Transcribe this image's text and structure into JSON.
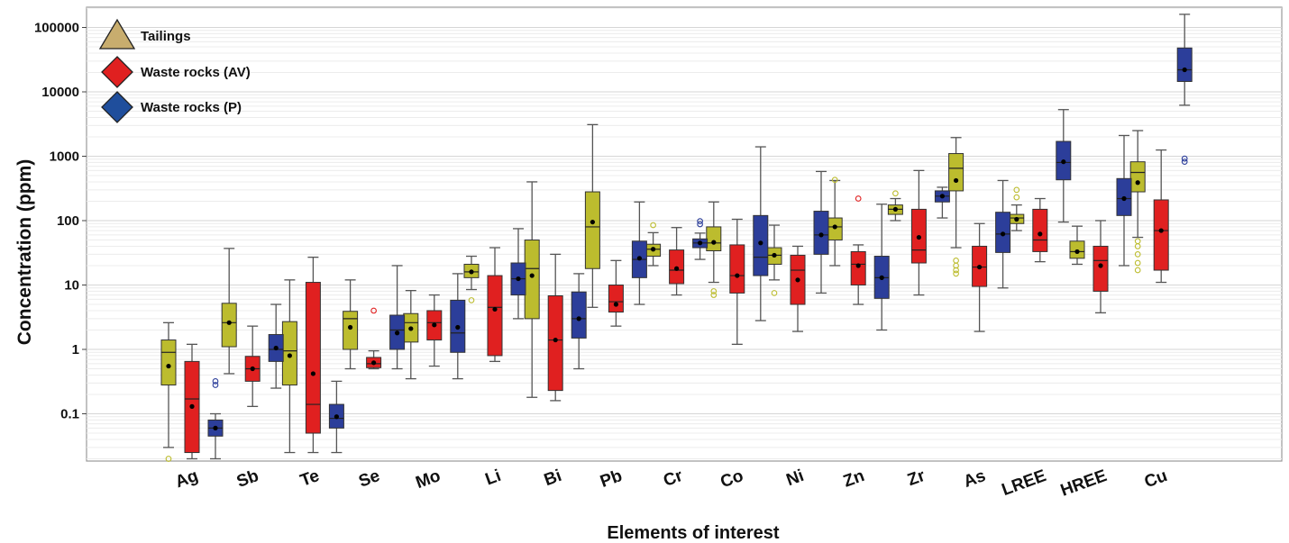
{
  "chart_data": {
    "type": "box",
    "xlabel": "Elements of interest",
    "ylabel": "Concentration (ppm)",
    "y_scale": "log",
    "ylim": [
      0.015,
      220000
    ],
    "y_ticks": [
      0.1,
      1,
      10,
      100,
      1000,
      10000,
      100000
    ],
    "y_tick_labels": [
      "0.1",
      "1",
      "10",
      "100",
      "1000",
      "10000",
      "100000"
    ],
    "grid": "horizontal",
    "legend_position": "top-left",
    "categories": [
      "Ag",
      "Sb",
      "Te",
      "Se",
      "Mo",
      "Li",
      "Bi",
      "Pb",
      "Cr",
      "Co",
      "Ni",
      "Zn",
      "Zr",
      "As",
      "LREE",
      "HREE",
      "Cu"
    ],
    "series": [
      {
        "name": "Tailings",
        "legend_marker": "triangle",
        "legend_color": "#c8ad6e",
        "color": "#bcbc2e",
        "boxes": [
          {
            "min": 0.03,
            "q1": 0.28,
            "median": 0.9,
            "q3": 1.4,
            "max": 2.6,
            "mean": 0.55,
            "outliers": [
              0.02
            ]
          },
          {
            "min": 0.42,
            "q1": 1.1,
            "median": 2.6,
            "q3": 5.2,
            "max": 37,
            "mean": 2.6,
            "outliers": []
          },
          {
            "min": 0.025,
            "q1": 0.28,
            "median": 0.95,
            "q3": 2.7,
            "max": 12,
            "mean": 0.8,
            "outliers": []
          },
          {
            "min": 0.5,
            "q1": 1.0,
            "median": 3.0,
            "q3": 3.9,
            "max": 12,
            "mean": 2.2,
            "outliers": []
          },
          {
            "min": 0.35,
            "q1": 1.3,
            "median": 2.6,
            "q3": 3.6,
            "max": 8.2,
            "mean": 2.1,
            "outliers": []
          },
          {
            "min": 8.5,
            "q1": 13,
            "median": 16,
            "q3": 21,
            "max": 28,
            "mean": 16,
            "outliers": [
              5.8
            ]
          },
          {
            "min": 0.18,
            "q1": 3.0,
            "median": 18,
            "q3": 50,
            "max": 400,
            "mean": 14,
            "outliers": []
          },
          {
            "min": 4.5,
            "q1": 18,
            "median": 80,
            "q3": 280,
            "max": 3100,
            "mean": 95,
            "outliers": []
          },
          {
            "min": 20,
            "q1": 28,
            "median": 36,
            "q3": 43,
            "max": 65,
            "mean": 36,
            "outliers": [
              85
            ]
          },
          {
            "min": 11,
            "q1": 34,
            "median": 45,
            "q3": 80,
            "max": 195,
            "mean": 46,
            "outliers": [
              7,
              8
            ]
          },
          {
            "min": 12,
            "q1": 21,
            "median": 29,
            "q3": 38,
            "max": 85,
            "mean": 29,
            "outliers": [
              7.5
            ]
          },
          {
            "min": 20,
            "q1": 50,
            "median": 80,
            "q3": 110,
            "max": 420,
            "mean": 80,
            "outliers": [
              430
            ]
          },
          {
            "min": 100,
            "q1": 125,
            "median": 150,
            "q3": 175,
            "max": 220,
            "mean": 150,
            "outliers": [
              265
            ]
          },
          {
            "min": 38,
            "q1": 290,
            "median": 650,
            "q3": 1100,
            "max": 1950,
            "mean": 420,
            "outliers": [
              15,
              17,
              20,
              24
            ]
          },
          {
            "min": 70,
            "q1": 90,
            "median": 110,
            "q3": 125,
            "max": 175,
            "mean": 105,
            "outliers": [
              230,
              300
            ]
          },
          {
            "min": 21,
            "q1": 26,
            "median": 33,
            "q3": 48,
            "max": 82,
            "mean": 33,
            "outliers": []
          },
          {
            "min": 55,
            "q1": 280,
            "median": 560,
            "q3": 820,
            "max": 2500,
            "mean": 390,
            "outliers": [
              17,
              22,
              30,
              40,
              48
            ]
          }
        ]
      },
      {
        "name": "Waste rocks (AV)",
        "legend_marker": "diamond",
        "legend_color": "#e02020",
        "color": "#e02020",
        "boxes": [
          {
            "min": 0.02,
            "q1": 0.025,
            "median": 0.17,
            "q3": 0.65,
            "max": 1.2,
            "mean": 0.13,
            "outliers": []
          },
          {
            "min": 0.13,
            "q1": 0.32,
            "median": 0.5,
            "q3": 0.78,
            "max": 2.3,
            "mean": 0.5,
            "outliers": []
          },
          {
            "min": 0.025,
            "q1": 0.05,
            "median": 0.14,
            "q3": 11,
            "max": 27,
            "mean": 0.42,
            "outliers": []
          },
          {
            "min": 0.5,
            "q1": 0.52,
            "median": 0.6,
            "q3": 0.75,
            "max": 0.95,
            "mean": 0.62,
            "outliers": [
              4
            ]
          },
          {
            "min": 0.55,
            "q1": 1.4,
            "median": 2.6,
            "q3": 4.0,
            "max": 7.0,
            "mean": 2.4,
            "outliers": []
          },
          {
            "min": 0.65,
            "q1": 0.8,
            "median": 4.5,
            "q3": 14,
            "max": 38,
            "mean": 4.2,
            "outliers": []
          },
          {
            "min": 0.16,
            "q1": 0.23,
            "median": 1.4,
            "q3": 6.8,
            "max": 30,
            "mean": 1.4,
            "outliers": []
          },
          {
            "min": 2.3,
            "q1": 3.8,
            "median": 5.5,
            "q3": 10,
            "max": 24,
            "mean": 5.0,
            "outliers": []
          },
          {
            "min": 7,
            "q1": 10.5,
            "median": 17,
            "q3": 35,
            "max": 78,
            "mean": 18,
            "outliers": []
          },
          {
            "min": 1.2,
            "q1": 7.5,
            "median": 14,
            "q3": 42,
            "max": 105,
            "mean": 14,
            "outliers": []
          },
          {
            "min": 1.9,
            "q1": 5,
            "median": 17,
            "q3": 29,
            "max": 40,
            "mean": 12,
            "outliers": []
          },
          {
            "min": 5,
            "q1": 10,
            "median": 21,
            "q3": 33,
            "max": 42,
            "mean": 20,
            "outliers": [
              220
            ]
          },
          {
            "min": 7,
            "q1": 22,
            "median": 35,
            "q3": 150,
            "max": 600,
            "mean": 55,
            "outliers": []
          },
          {
            "min": 1.9,
            "q1": 9.5,
            "median": 19,
            "q3": 40,
            "max": 90,
            "mean": 19,
            "outliers": []
          },
          {
            "min": 23,
            "q1": 33,
            "median": 50,
            "q3": 150,
            "max": 220,
            "mean": 62,
            "outliers": []
          },
          {
            "min": 3.7,
            "q1": 8,
            "median": 24,
            "q3": 40,
            "max": 100,
            "mean": 20,
            "outliers": []
          },
          {
            "min": 11,
            "q1": 17,
            "median": 70,
            "q3": 210,
            "max": 1250,
            "mean": 70,
            "outliers": []
          }
        ]
      },
      {
        "name": "Waste rocks (P)",
        "legend_marker": "diamond",
        "legend_color": "#1f4e9c",
        "color": "#2c3e9a",
        "boxes": [
          {
            "min": 0.02,
            "q1": 0.045,
            "median": 0.06,
            "q3": 0.08,
            "max": 0.1,
            "mean": 0.06,
            "outliers": [
              0.28,
              0.32
            ]
          },
          {
            "min": 0.25,
            "q1": 0.65,
            "median": 1.0,
            "q3": 1.7,
            "max": 5.0,
            "mean": 1.05,
            "outliers": []
          },
          {
            "min": 0.025,
            "q1": 0.06,
            "median": 0.085,
            "q3": 0.14,
            "max": 0.32,
            "mean": 0.09,
            "outliers": []
          },
          {
            "min": 0.5,
            "q1": 1.0,
            "median": 2.0,
            "q3": 3.4,
            "max": 20,
            "mean": 1.8,
            "outliers": []
          },
          {
            "min": 0.35,
            "q1": 0.9,
            "median": 1.8,
            "q3": 5.8,
            "max": 15,
            "mean": 2.2,
            "outliers": []
          },
          {
            "min": 3.0,
            "q1": 7,
            "median": 12.5,
            "q3": 22,
            "max": 75,
            "mean": 12.5,
            "outliers": []
          },
          {
            "min": 0.5,
            "q1": 1.5,
            "median": 3.0,
            "q3": 7.8,
            "max": 15,
            "mean": 3.0,
            "outliers": []
          },
          {
            "min": 5,
            "q1": 13,
            "median": 25,
            "q3": 48,
            "max": 195,
            "mean": 26,
            "outliers": []
          },
          {
            "min": 25,
            "q1": 38,
            "median": 45,
            "q3": 52,
            "max": 64,
            "mean": 45,
            "outliers": [
              88,
              98
            ]
          },
          {
            "min": 2.8,
            "q1": 14,
            "median": 27,
            "q3": 120,
            "max": 1400,
            "mean": 45,
            "outliers": []
          },
          {
            "min": 7.5,
            "q1": 30,
            "median": 60,
            "q3": 140,
            "max": 580,
            "mean": 60,
            "outliers": []
          },
          {
            "min": 2.0,
            "q1": 6.2,
            "median": 13,
            "q3": 28,
            "max": 180,
            "mean": 13,
            "outliers": []
          },
          {
            "min": 110,
            "q1": 195,
            "median": 240,
            "q3": 290,
            "max": 330,
            "mean": 240,
            "outliers": []
          },
          {
            "min": 9,
            "q1": 32,
            "median": 62,
            "q3": 135,
            "max": 420,
            "mean": 62,
            "outliers": []
          },
          {
            "min": 95,
            "q1": 430,
            "median": 800,
            "q3": 1700,
            "max": 5300,
            "mean": 820,
            "outliers": []
          },
          {
            "min": 20,
            "q1": 120,
            "median": 220,
            "q3": 450,
            "max": 2100,
            "mean": 220,
            "outliers": []
          },
          {
            "min": 6200,
            "q1": 14500,
            "median": 22000,
            "q3": 48000,
            "max": 160000,
            "mean": 22000,
            "outliers": [
              820,
              920
            ]
          }
        ]
      }
    ]
  }
}
